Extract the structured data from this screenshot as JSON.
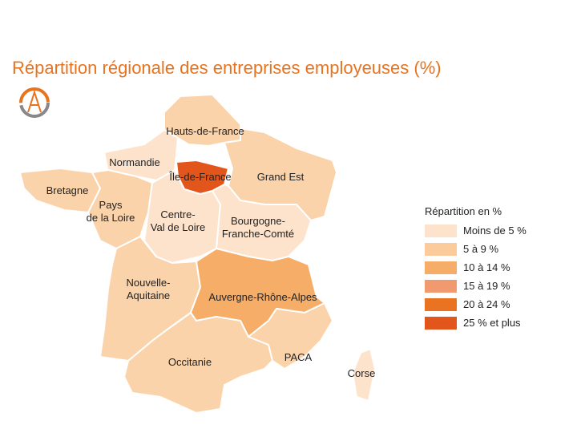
{
  "map_data": {
    "title": "Répartition régionale des entreprises employeuses (%)",
    "legend": {
      "title": "Répartition en %",
      "items": [
        {
          "label": "Moins de 5 %",
          "color": "#fde3cc"
        },
        {
          "label": "5 à 9 %",
          "color": "#fbcb9b"
        },
        {
          "label": "10 à 14 %",
          "color": "#f5ad68"
        },
        {
          "label": "15 à 19 %",
          "color": "#f19a70"
        },
        {
          "label": "20 à 24 %",
          "color": "#ea7322"
        },
        {
          "label": "25 % et plus",
          "color": "#e2561b"
        }
      ]
    },
    "regions": [
      {
        "label": "Hauts-de-France",
        "color": "#fbd3aa"
      },
      {
        "label": "Normandie",
        "color": "#fde3cc"
      },
      {
        "label": "Île-de-France",
        "color": "#e2561b"
      },
      {
        "label": "Grand Est",
        "color": "#fbd3aa"
      },
      {
        "label": "Bretagne",
        "color": "#fbd3aa"
      },
      {
        "label": "Pays\nde la Loire",
        "color": "#fbd3aa"
      },
      {
        "label": "Centre-\nVal de Loire",
        "color": "#fde3cc"
      },
      {
        "label": "Bourgogne-\nFranche-Comté",
        "color": "#fde3cc"
      },
      {
        "label": "Nouvelle-\nAquitaine",
        "color": "#fbd3aa"
      },
      {
        "label": "Auvergne-Rhône-Alpes",
        "color": "#f5ad68"
      },
      {
        "label": "Occitanie",
        "color": "#fbd3aa"
      },
      {
        "label": "PACA",
        "color": "#fbd3aa"
      },
      {
        "label": "Corse",
        "color": "#fde3cc"
      }
    ]
  }
}
